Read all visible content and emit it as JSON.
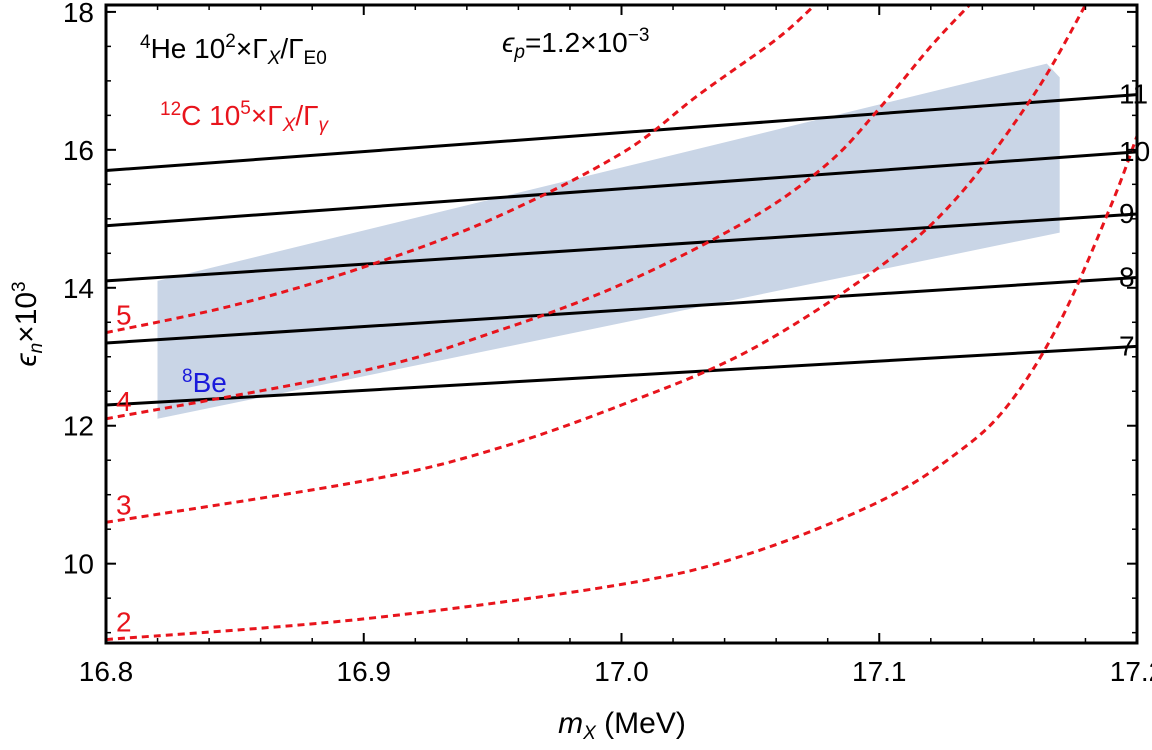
{
  "chart_data": {
    "type": "line",
    "title": "",
    "xlabel": {
      "var": "m",
      "sub": "X",
      "unit": "(MeV)"
    },
    "ylabel": {
      "var": "ϵ",
      "sub": "n",
      "mid": "×10",
      "sup": "3"
    },
    "xlim": [
      16.8,
      17.2
    ],
    "ylim": [
      8.85,
      18.1
    ],
    "x_ticks": [
      16.8,
      16.9,
      17.0,
      17.1,
      17.2
    ],
    "x_tick_labels": [
      "16.8",
      "16.9",
      "17.0",
      "17.1",
      "17.2"
    ],
    "y_ticks": [
      10,
      12,
      14,
      16,
      18
    ],
    "y_tick_labels": [
      "10",
      "12",
      "14",
      "16",
      "18"
    ],
    "legend": {
      "he": {
        "iso_sup": "4",
        "iso": "He 10",
        "pow_sup": "2",
        "times": "×Γ",
        "x_sub": "X",
        "slash": "/Γ",
        "den_sub": "E0"
      },
      "c": {
        "iso_sup": "12",
        "iso": "C 10",
        "pow_sup": "5",
        "times": "×Γ",
        "x_sub": "X",
        "slash": "/Γ",
        "den_sub": "γ"
      },
      "epsp": {
        "var": "ϵ",
        "sub": "p",
        "val": "=1.2×10",
        "sup": "−3"
      }
    },
    "region": {
      "name": "8Be",
      "label_sup": "8",
      "label": "Be",
      "color": "#c9d5e6",
      "polygon": [
        [
          16.82,
          14.1
        ],
        [
          17.165,
          17.25
        ],
        [
          17.17,
          17.05
        ],
        [
          17.17,
          14.8
        ],
        [
          16.82,
          12.1
        ]
      ]
    },
    "series_black": [
      {
        "name": "7",
        "label": "7",
        "points": [
          [
            16.8,
            12.3
          ],
          [
            17.2,
            13.15
          ]
        ]
      },
      {
        "name": "8",
        "label": "8",
        "points": [
          [
            16.8,
            13.2
          ],
          [
            17.2,
            14.15
          ]
        ]
      },
      {
        "name": "9",
        "label": "9",
        "points": [
          [
            16.8,
            14.1
          ],
          [
            17.2,
            15.07
          ]
        ]
      },
      {
        "name": "10",
        "label": "10",
        "points": [
          [
            16.8,
            14.9
          ],
          [
            17.2,
            15.97
          ]
        ]
      },
      {
        "name": "11",
        "label": "11",
        "points": [
          [
            16.8,
            15.7
          ],
          [
            17.2,
            16.8
          ]
        ]
      }
    ],
    "series_red": [
      {
        "name": "2",
        "label": "2",
        "points": [
          [
            16.8,
            8.9
          ],
          [
            16.9,
            9.2
          ],
          [
            17.0,
            9.7
          ],
          [
            17.05,
            10.15
          ],
          [
            17.1,
            10.9
          ],
          [
            17.13,
            11.6
          ],
          [
            17.15,
            12.3
          ],
          [
            17.17,
            13.5
          ],
          [
            17.19,
            15.2
          ],
          [
            17.2,
            16.2
          ]
        ]
      },
      {
        "name": "3",
        "label": "3",
        "points": [
          [
            16.8,
            10.6
          ],
          [
            16.9,
            11.2
          ],
          [
            16.95,
            11.65
          ],
          [
            17.0,
            12.3
          ],
          [
            17.05,
            13.1
          ],
          [
            17.1,
            14.3
          ],
          [
            17.13,
            15.3
          ],
          [
            17.16,
            16.8
          ],
          [
            17.18,
            18.1
          ]
        ]
      },
      {
        "name": "4",
        "label": "4",
        "points": [
          [
            16.8,
            12.1
          ],
          [
            16.9,
            12.8
          ],
          [
            16.95,
            13.35
          ],
          [
            17.0,
            14.05
          ],
          [
            17.05,
            15.0
          ],
          [
            17.08,
            15.8
          ],
          [
            17.1,
            16.6
          ],
          [
            17.12,
            17.5
          ],
          [
            17.135,
            18.1
          ]
        ]
      },
      {
        "name": "5",
        "label": "5",
        "points": [
          [
            16.8,
            13.35
          ],
          [
            16.85,
            13.75
          ],
          [
            16.9,
            14.3
          ],
          [
            16.95,
            15.0
          ],
          [
            17.0,
            15.95
          ],
          [
            17.03,
            16.8
          ],
          [
            17.06,
            17.6
          ],
          [
            17.075,
            18.1
          ]
        ]
      }
    ]
  }
}
